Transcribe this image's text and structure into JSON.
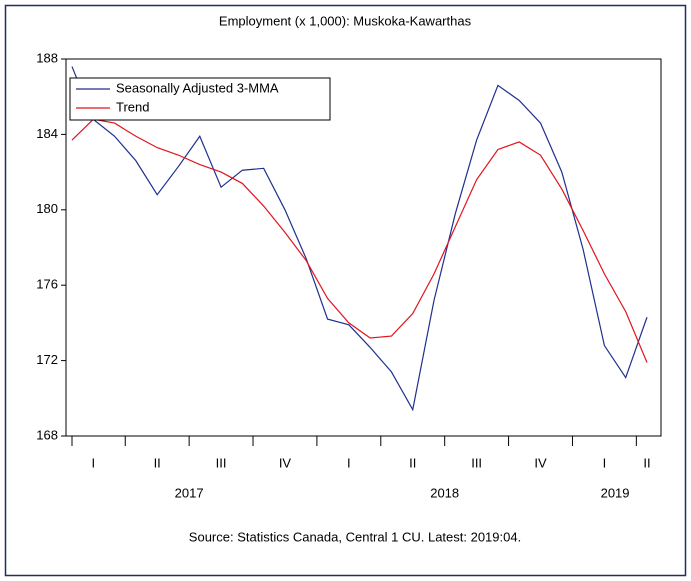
{
  "chart_data": {
    "type": "line",
    "title": "Employment (x 1,000): Muskoka-Kawarthas",
    "source": "Source: Statistics Canada, Central 1 CU. Latest: 2019:04.",
    "quarters": [
      "I",
      "II",
      "III",
      "IV",
      "I",
      "II",
      "III",
      "IV",
      "I",
      "II"
    ],
    "years": [
      "2017",
      "2018",
      "2019"
    ],
    "series": [
      {
        "name": "Seasonally Adjusted 3-MMA",
        "color": "#1f2f8f",
        "values": [
          187.6,
          184.8,
          183.9,
          182.6,
          180.8,
          182.3,
          183.9,
          181.2,
          182.1,
          182.2,
          180.0,
          177.4,
          174.2,
          173.9,
          172.7,
          171.4,
          169.4,
          175.2,
          179.8,
          183.7,
          186.6,
          185.8,
          184.6,
          182.0,
          177.9,
          172.8,
          171.1,
          174.3
        ]
      },
      {
        "name": "Trend",
        "color": "#e0141e",
        "values": [
          183.7,
          184.8,
          184.6,
          183.9,
          183.3,
          182.9,
          182.4,
          182.0,
          181.4,
          180.2,
          178.8,
          177.3,
          175.3,
          174.0,
          173.2,
          173.3,
          174.5,
          176.6,
          179.1,
          181.6,
          183.2,
          183.6,
          182.9,
          181.1,
          178.9,
          176.6,
          174.6,
          171.9
        ]
      }
    ],
    "ylim": [
      168,
      188
    ],
    "yticks": [
      168,
      172,
      176,
      180,
      184,
      188
    ],
    "legend": "upper-left"
  }
}
